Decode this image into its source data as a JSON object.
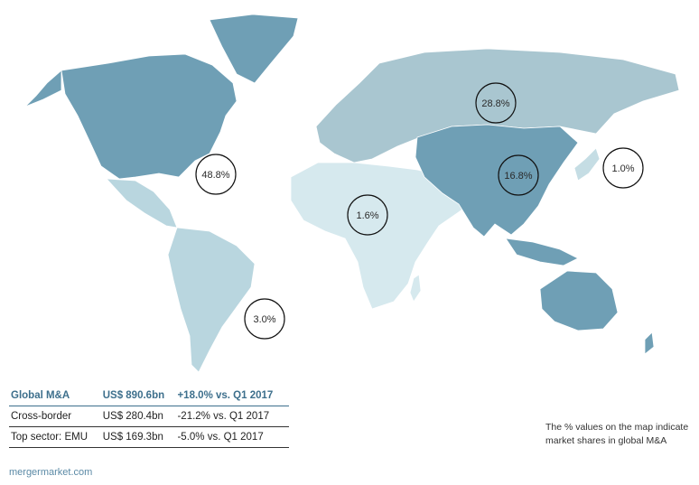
{
  "colors": {
    "north_america": "#6f9fb5",
    "greenland": "#6f9fb5",
    "south_america": "#b9d6df",
    "europe_russia": "#a9c6d0",
    "africa_mideast": "#d6e9ee",
    "asia": "#6f9fb5",
    "japan": "#c5dde4",
    "oceania": "#6f9fb5",
    "header_accent": "#3d6f8c",
    "source_text": "#5b8aa6"
  },
  "bubbles": [
    {
      "label": "48.8%"
    },
    {
      "label": "28.8%"
    },
    {
      "label": "16.8%"
    },
    {
      "label": "1.6%"
    },
    {
      "label": "1.0%"
    },
    {
      "label": "3.0%"
    }
  ],
  "stats": {
    "header": {
      "name": "Global M&A",
      "value": "US$ 890.6bn",
      "change": "+18.0% vs. Q1 2017"
    },
    "rows": [
      {
        "name": "Cross-border",
        "value": "US$ 280.4bn",
        "change": "-21.2%  vs. Q1 2017"
      },
      {
        "name": "Top sector: EMU",
        "value": "US$ 169.3bn",
        "change": "-5.0%   vs. Q1 2017"
      }
    ]
  },
  "note": "The % values on the map indicate market shares in global M&A",
  "source": "mergermarket.com"
}
